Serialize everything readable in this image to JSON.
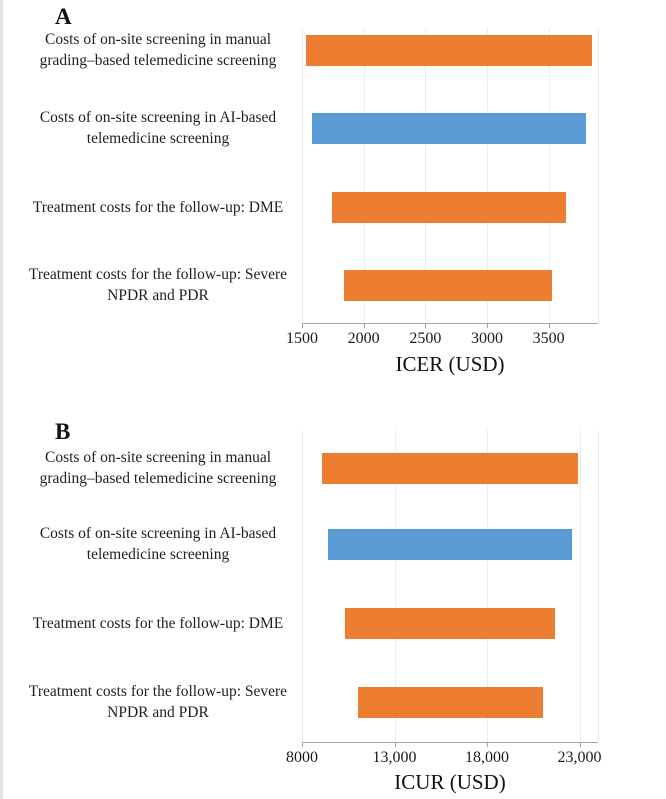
{
  "colors": {
    "bar_orange": "#ED7D31",
    "bar_blue": "#5B9BD5",
    "gridline": "#ececec",
    "axis_line": "#a6a6a6",
    "text": "#1a1a1a"
  },
  "chart_data": [
    {
      "type": "bar",
      "orientation": "horizontal",
      "panel_label": "A",
      "xlabel": "ICER (USD)",
      "grid": true,
      "legend": false,
      "axis": {
        "min": 1500,
        "max": 3900,
        "ticks": [
          1500,
          2000,
          2500,
          3000,
          3500
        ],
        "tick_labels": [
          "1500",
          "2000",
          "2500",
          "3000",
          "3500"
        ]
      },
      "categories": [
        "Costs of on-site screening in manual grading–based telemedicine screening",
        "Costs of on-site screening in AI-based telemedicine screening",
        "Treatment costs for the follow-up: DME",
        "Treatment costs for the follow-up: Severe NPDR and PDR"
      ],
      "bars": [
        {
          "label": "Costs of on-site screening in manual grading–based telemedicine screening",
          "low": 1530,
          "high": 3850,
          "color": "bar_orange"
        },
        {
          "label": "Costs of on-site screening in AI-based telemedicine screening",
          "low": 1580,
          "high": 3800,
          "color": "bar_blue"
        },
        {
          "label": "Treatment costs for the follow-up: DME",
          "low": 1740,
          "high": 3640,
          "color": "bar_orange"
        },
        {
          "label": "Treatment costs for the follow-up: Severe NPDR and PDR",
          "low": 1840,
          "high": 3530,
          "color": "bar_orange"
        }
      ]
    },
    {
      "type": "bar",
      "orientation": "horizontal",
      "panel_label": "B",
      "xlabel": "ICUR (USD)",
      "grid": true,
      "legend": false,
      "axis": {
        "min": 8000,
        "max": 24000,
        "ticks": [
          8000,
          13000,
          18000,
          23000
        ],
        "tick_labels": [
          "8000",
          "13,000",
          "18,000",
          "23,000"
        ]
      },
      "categories": [
        "Costs of on-site screening in manual grading–based telemedicine screening",
        "Costs of on-site screening in AI-based telemedicine screening",
        "Treatment costs for the follow-up: DME",
        "Treatment costs for the follow-up: Severe NPDR and PDR"
      ],
      "bars": [
        {
          "label": "Costs of on-site screening in manual grading–based telemedicine screening",
          "low": 9100,
          "high": 22900,
          "color": "bar_orange"
        },
        {
          "label": "Costs of on-site screening in AI-based telemedicine screening",
          "low": 9400,
          "high": 22600,
          "color": "bar_blue"
        },
        {
          "label": "Treatment costs for the follow-up: DME",
          "low": 10300,
          "high": 21700,
          "color": "bar_orange"
        },
        {
          "label": "Treatment costs for the follow-up: Severe NPDR and PDR",
          "low": 11000,
          "high": 21050,
          "color": "bar_orange"
        }
      ]
    }
  ]
}
